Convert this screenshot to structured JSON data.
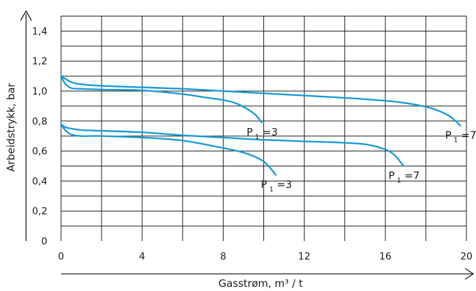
{
  "chart_data": {
    "type": "line",
    "xlabel": "Gasstrøm, m³ / t",
    "ylabel": "Arbeidstrykk, bar",
    "xlim": [
      0,
      20
    ],
    "ylim": [
      0,
      1.5
    ],
    "xticks": [
      0,
      4,
      8,
      12,
      16,
      20
    ],
    "xtick_labels": [
      "0",
      "4",
      "8",
      "12",
      "16",
      "20"
    ],
    "yticks": [
      0,
      0.2,
      0.4,
      0.6,
      0.8,
      1.0,
      1.2,
      1.4
    ],
    "ytick_labels": [
      "0",
      "0,2",
      "0,4",
      "0,6",
      "0,8",
      "1,0",
      "1,2",
      "1,4"
    ],
    "grid": true,
    "line_color": "#1a9ad6",
    "series": [
      {
        "label_main": "P",
        "label_sub": "1",
        "label_tail": "=3",
        "x": [
          0,
          0.2,
          0.5,
          1,
          2,
          4,
          6,
          7,
          8,
          8.6,
          9.2,
          9.6,
          9.9
        ],
        "y": [
          1.1,
          1.05,
          1.02,
          1.015,
          1.01,
          1.005,
          0.98,
          0.96,
          0.94,
          0.92,
          0.88,
          0.84,
          0.79
        ]
      },
      {
        "label_main": "P",
        "label_sub": "1",
        "label_tail": "=7",
        "x": [
          0,
          0.5,
          1,
          2,
          4,
          6,
          8,
          10,
          12,
          14,
          16,
          17,
          18,
          18.6,
          19.2,
          19.7
        ],
        "y": [
          1.1,
          1.06,
          1.045,
          1.035,
          1.025,
          1.015,
          1.0,
          0.985,
          0.97,
          0.955,
          0.935,
          0.92,
          0.895,
          0.87,
          0.83,
          0.77
        ]
      },
      {
        "label_main": "P",
        "label_sub": "1",
        "label_tail": "=3",
        "x": [
          0,
          0.2,
          0.5,
          1,
          2,
          4,
          6,
          8,
          9,
          9.6,
          10,
          10.3,
          10.6
        ],
        "y": [
          0.78,
          0.74,
          0.71,
          0.7,
          0.7,
          0.69,
          0.67,
          0.62,
          0.59,
          0.56,
          0.53,
          0.49,
          0.44
        ]
      },
      {
        "label_main": "P",
        "label_sub": "1",
        "label_tail": "=7",
        "x": [
          0,
          0.2,
          0.5,
          1,
          2,
          4,
          6,
          8,
          10,
          12,
          14,
          15,
          15.8,
          16.4,
          16.9
        ],
        "y": [
          0.78,
          0.76,
          0.75,
          0.74,
          0.735,
          0.725,
          0.705,
          0.69,
          0.675,
          0.665,
          0.655,
          0.645,
          0.62,
          0.58,
          0.5
        ]
      }
    ]
  }
}
